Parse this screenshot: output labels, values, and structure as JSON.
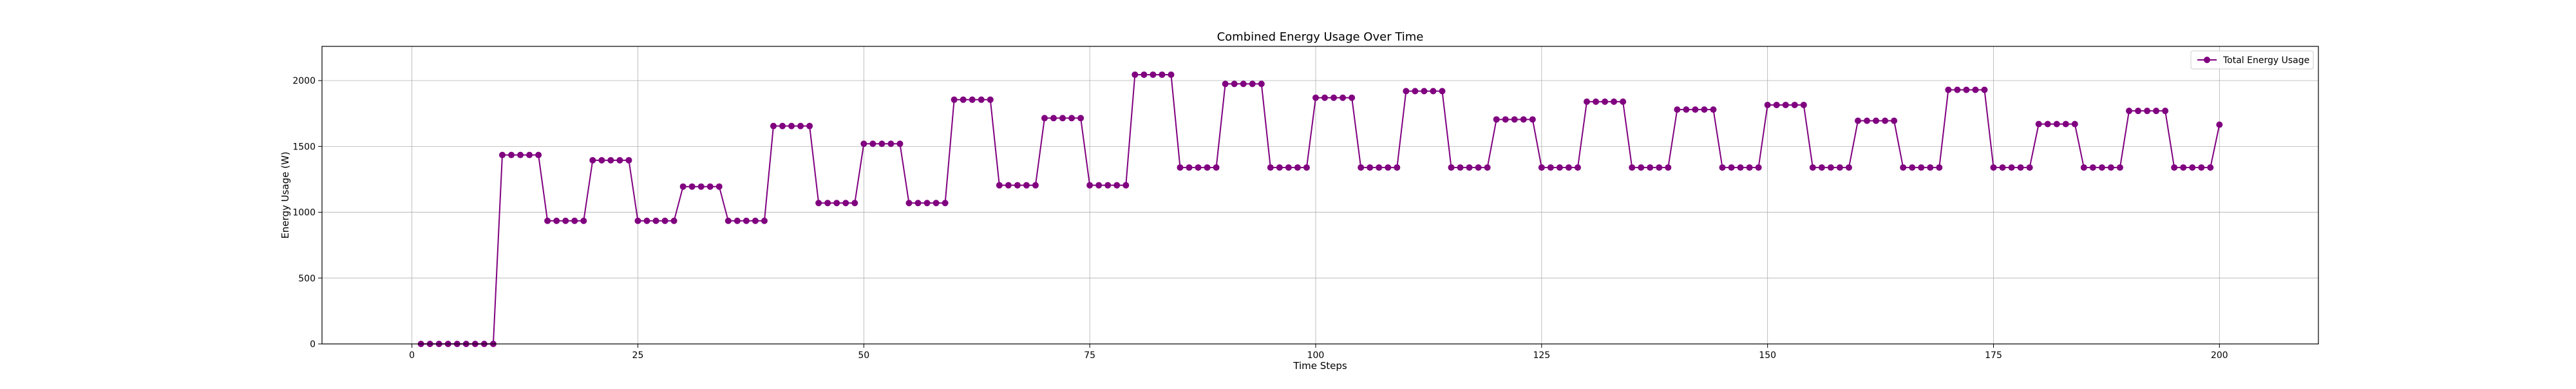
{
  "chart_data": {
    "type": "line",
    "title": "Combined Energy Usage Over Time",
    "xlabel": "Time Steps",
    "ylabel": "Energy Usage (W)",
    "xlim": [
      -9.95,
      210.95
    ],
    "ylim": [
      0,
      2260
    ],
    "xticks": [
      0,
      25,
      50,
      75,
      100,
      125,
      150,
      175,
      200
    ],
    "yticks": [
      0,
      500,
      1000,
      1500,
      2000
    ],
    "grid": true,
    "legend": {
      "placement": "top-right"
    },
    "series": [
      {
        "name": "Total Energy Usage",
        "color": "#800080",
        "marker": "circle",
        "segments": [
          {
            "from": 1,
            "to": 9,
            "y": 0
          },
          {
            "from": 10,
            "to": 14,
            "y": 1435
          },
          {
            "from": 15,
            "to": 19,
            "y": 935
          },
          {
            "from": 20,
            "to": 24,
            "y": 1395
          },
          {
            "from": 25,
            "to": 29,
            "y": 935
          },
          {
            "from": 30,
            "to": 34,
            "y": 1195
          },
          {
            "from": 35,
            "to": 39,
            "y": 935
          },
          {
            "from": 40,
            "to": 44,
            "y": 1655
          },
          {
            "from": 45,
            "to": 49,
            "y": 1070
          },
          {
            "from": 50,
            "to": 54,
            "y": 1520
          },
          {
            "from": 55,
            "to": 59,
            "y": 1070
          },
          {
            "from": 60,
            "to": 64,
            "y": 1855
          },
          {
            "from": 65,
            "to": 69,
            "y": 1205
          },
          {
            "from": 70,
            "to": 74,
            "y": 1715
          },
          {
            "from": 75,
            "to": 79,
            "y": 1205
          },
          {
            "from": 80,
            "to": 84,
            "y": 2045
          },
          {
            "from": 85,
            "to": 89,
            "y": 1340
          },
          {
            "from": 90,
            "to": 94,
            "y": 1975
          },
          {
            "from": 95,
            "to": 99,
            "y": 1340
          },
          {
            "from": 100,
            "to": 104,
            "y": 1870
          },
          {
            "from": 105,
            "to": 109,
            "y": 1340
          },
          {
            "from": 110,
            "to": 114,
            "y": 1920
          },
          {
            "from": 115,
            "to": 119,
            "y": 1340
          },
          {
            "from": 120,
            "to": 124,
            "y": 1705
          },
          {
            "from": 125,
            "to": 129,
            "y": 1340
          },
          {
            "from": 130,
            "to": 134,
            "y": 1840
          },
          {
            "from": 135,
            "to": 139,
            "y": 1340
          },
          {
            "from": 140,
            "to": 144,
            "y": 1780
          },
          {
            "from": 145,
            "to": 149,
            "y": 1340
          },
          {
            "from": 150,
            "to": 154,
            "y": 1815
          },
          {
            "from": 155,
            "to": 159,
            "y": 1340
          },
          {
            "from": 160,
            "to": 164,
            "y": 1695
          },
          {
            "from": 165,
            "to": 169,
            "y": 1340
          },
          {
            "from": 170,
            "to": 174,
            "y": 1930
          },
          {
            "from": 175,
            "to": 179,
            "y": 1340
          },
          {
            "from": 180,
            "to": 184,
            "y": 1670
          },
          {
            "from": 185,
            "to": 189,
            "y": 1340
          },
          {
            "from": 190,
            "to": 194,
            "y": 1770
          },
          {
            "from": 195,
            "to": 199,
            "y": 1340
          },
          {
            "from": 200,
            "to": 200,
            "y": 1665
          }
        ]
      }
    ]
  }
}
